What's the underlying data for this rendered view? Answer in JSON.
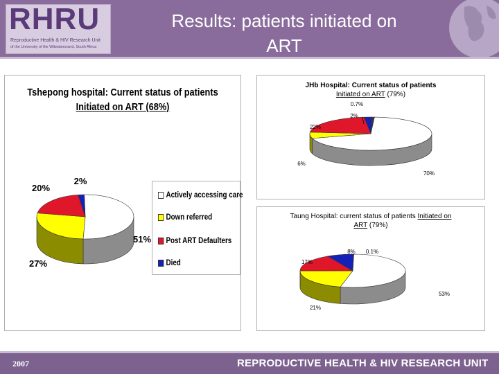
{
  "header": {
    "logo": "RHRU",
    "logo_subtitle": "Reproductive Health & HIV Research Unit",
    "logo_subtitle2": "of the University of the Witwatersrand, South Africa",
    "title_line1": "Results: patients initiated on",
    "title_line2": "ART"
  },
  "footer": {
    "year": "2007",
    "organization": "REPRODUCTIVE HEALTH & HIV RESEARCH UNIT"
  },
  "colors": {
    "header_bg": "#8a6c9c",
    "footer_bg": "#7d6290",
    "active": "#ffffff",
    "down_referred": "#ffff00",
    "defaulters": "#e0162b",
    "died": "#1520b8"
  },
  "legend": {
    "items": [
      "Actively accessing care",
      "Down referred",
      "Post ART Defaulters",
      "Died"
    ]
  },
  "chart_data": [
    {
      "type": "pie",
      "title_line1": "Tshepong hospital: Current status of patients",
      "title_line2": "Initiated on ART (68%)",
      "categories": [
        "Actively accessing care",
        "Down referred",
        "Post ART Defaulters",
        "Died"
      ],
      "values": [
        51,
        27,
        20,
        2
      ],
      "labels": [
        "51%",
        "27%",
        "20%",
        "2%"
      ],
      "legend": "right"
    },
    {
      "type": "pie",
      "title_line1": "JHb Hospital: Current status of patients",
      "title_line2_underlined": "Initiated on ART",
      "title_line2_rest": " (79%)",
      "categories": [
        "Actively accessing care",
        "Down referred",
        "Post ART Defaulters",
        "Died",
        ""
      ],
      "values": [
        70,
        6,
        22,
        2,
        0.7
      ],
      "labels": [
        "70%",
        "6%",
        "22%",
        "2%",
        "0.7%"
      ]
    },
    {
      "type": "pie",
      "title_line1_plain": "Taung Hospital: current status of patients ",
      "title_line1_underlined": "Initiated on",
      "title_line2_underlined": "ART",
      "title_line2_rest": " (79%)",
      "categories": [
        "Actively accessing care",
        "Down referred",
        "Post ART Defaulters",
        "Died",
        ""
      ],
      "values": [
        53,
        21,
        17,
        8,
        0.1
      ],
      "labels": [
        "53%",
        "21%",
        "17%",
        "8%",
        "0.1%"
      ]
    }
  ]
}
